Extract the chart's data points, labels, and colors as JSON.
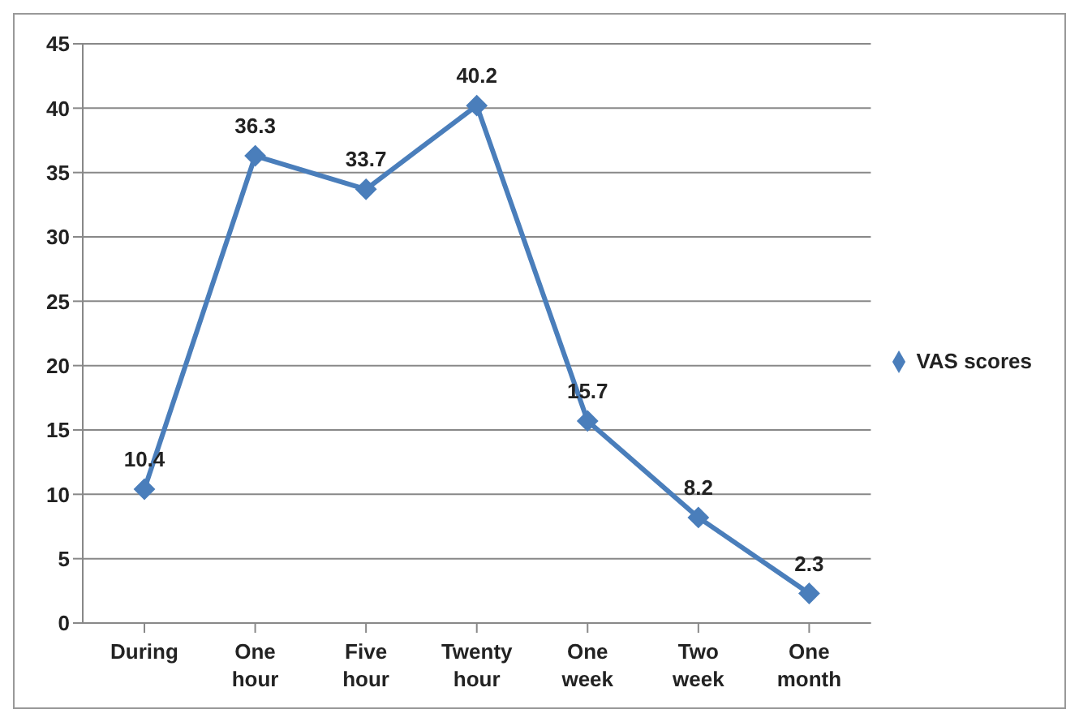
{
  "chart_data": {
    "type": "line",
    "categories": [
      "During",
      "One hour",
      "Five hour",
      "Twenty hour",
      "One week",
      "Two week",
      "One month"
    ],
    "series": [
      {
        "name": "VAS scores",
        "color": "#4a7ebb",
        "values": [
          10.4,
          36.3,
          33.7,
          40.2,
          15.7,
          8.2,
          2.3
        ]
      }
    ],
    "ylim": [
      0,
      45
    ],
    "yticks": [
      0,
      5,
      10,
      15,
      20,
      25,
      30,
      35,
      40,
      45
    ],
    "grid": "y",
    "legend": "right",
    "marker": "diamond",
    "line_style": "solid",
    "data_labels": true
  }
}
